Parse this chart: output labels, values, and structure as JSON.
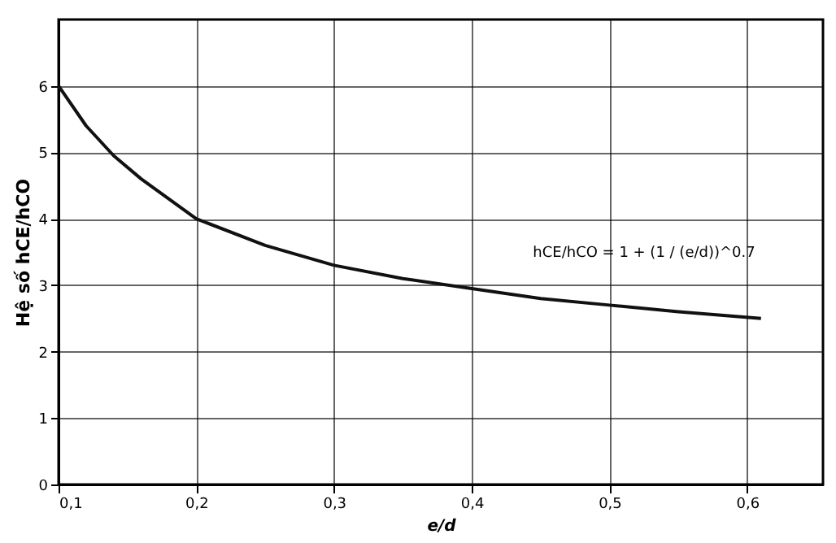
{
  "chart_data": {
    "type": "line",
    "xlabel": "e/d",
    "ylabel": "Hệ số hCE/hCO",
    "x": [
      0.1,
      0.12,
      0.14,
      0.16,
      0.18,
      0.2,
      0.25,
      0.3,
      0.35,
      0.4,
      0.45,
      0.5,
      0.55,
      0.61
    ],
    "series": [
      {
        "color": "#111111",
        "values": [
          6.0,
          5.4,
          4.95,
          4.6,
          4.3,
          4.0,
          3.6,
          3.3,
          3.1,
          2.95,
          2.8,
          2.7,
          2.6,
          2.5
        ]
      }
    ],
    "xlim": [
      0.1,
      0.655
    ],
    "ylim": [
      0,
      7
    ],
    "xticks": [
      {
        "value": 0.1,
        "label": "0,1"
      },
      {
        "value": 0.2,
        "label": "0,2"
      },
      {
        "value": 0.3,
        "label": "0,3"
      },
      {
        "value": 0.4,
        "label": "0,4"
      },
      {
        "value": 0.5,
        "label": "0,5"
      },
      {
        "value": 0.6,
        "label": "0,6"
      }
    ],
    "yticks": [
      0,
      1,
      2,
      3,
      4,
      5,
      6
    ],
    "grid": true,
    "marker": "none",
    "line_style": "solid",
    "annotations": [
      "hCE/hCO = 1 + (1 / (e/d))^0.7"
    ]
  }
}
